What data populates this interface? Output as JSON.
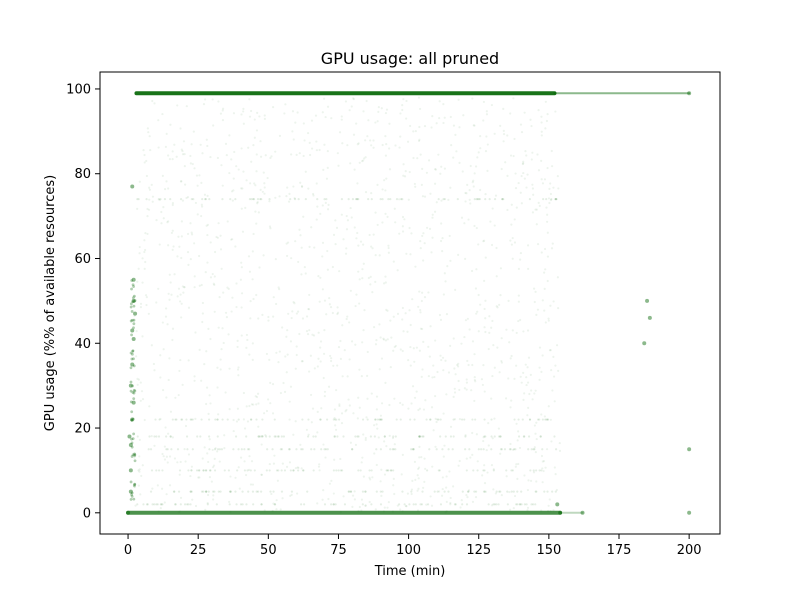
{
  "chart_data": {
    "type": "scatter",
    "title": "GPU usage: all pruned",
    "xlabel": "Time (min)",
    "ylabel": "GPU usage (%% of available resources)",
    "xlim": [
      -10,
      211
    ],
    "ylim": [
      -5,
      104
    ],
    "xticks": [
      0,
      25,
      50,
      75,
      100,
      125,
      150,
      175,
      200
    ],
    "yticks": [
      0,
      20,
      40,
      60,
      80,
      100
    ],
    "grid": false,
    "legend": "none",
    "color": "#006400",
    "series": [
      {
        "note_bands": "dense horizontal bands",
        "values": [
          {
            "x_start": 3,
            "x_end": 152,
            "y": 99,
            "alpha": 0.9
          },
          {
            "x_start": 152,
            "x_end": 200,
            "y": 99,
            "alpha": 0.45
          },
          {
            "x_start": 0,
            "x_end": 154,
            "y": 0,
            "alpha": 0.7
          },
          {
            "x_start": 154,
            "x_end": 162,
            "y": 0,
            "alpha": 0.25
          }
        ]
      },
      {
        "note_points": "individual sparse measurements",
        "values": [
          {
            "x": 0,
            "y": 0
          },
          {
            "x": 1,
            "y": 5
          },
          {
            "x": 1,
            "y": 10
          },
          {
            "x": 1,
            "y": 16
          },
          {
            "x": 0.5,
            "y": 18
          },
          {
            "x": 1.5,
            "y": 22
          },
          {
            "x": 2,
            "y": 26
          },
          {
            "x": 1,
            "y": 30
          },
          {
            "x": 1.5,
            "y": 35
          },
          {
            "x": 2,
            "y": 41
          },
          {
            "x": 1.5,
            "y": 43
          },
          {
            "x": 2.5,
            "y": 47
          },
          {
            "x": 2,
            "y": 50
          },
          {
            "x": 2,
            "y": 55
          },
          {
            "x": 1.5,
            "y": 77
          },
          {
            "x": 153,
            "y": 2
          },
          {
            "x": 154,
            "y": 0
          },
          {
            "x": 162,
            "y": 0
          },
          {
            "x": 200,
            "y": 0
          },
          {
            "x": 200,
            "y": 15
          },
          {
            "x": 200,
            "y": 99
          },
          {
            "x": 184,
            "y": 40
          },
          {
            "x": 186,
            "y": 46
          },
          {
            "x": 185,
            "y": 50
          }
        ]
      }
    ]
  }
}
